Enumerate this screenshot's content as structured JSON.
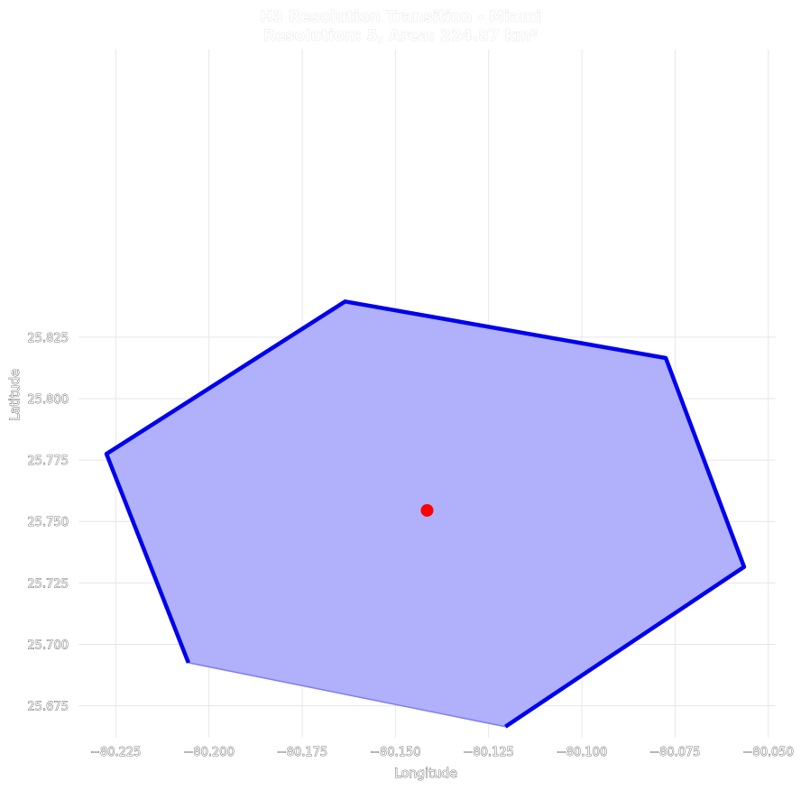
{
  "chart_data": {
    "type": "polygon",
    "title": "H3 Resolution Transition - Miami",
    "subtitle": "Resolution: 5, Area: 224.87 km²",
    "xlabel": "Longitude",
    "ylabel": "Latitude",
    "xlim": [
      -80.235,
      -80.048
    ],
    "ylim": [
      25.662,
      25.942
    ],
    "x_ticks": [
      -80.225,
      -80.2,
      -80.175,
      -80.15,
      -80.125,
      -80.1,
      -80.075,
      -80.05
    ],
    "y_ticks": [
      25.675,
      25.7,
      25.725,
      25.75,
      25.775,
      25.8,
      25.825
    ],
    "x_tick_labels": [
      "−80.225",
      "−80.200",
      "−80.175",
      "−80.150",
      "−80.125",
      "−80.100",
      "−80.075",
      "−80.050"
    ],
    "y_tick_labels": [
      "25.675",
      "25.700",
      "25.725",
      "25.750",
      "25.775",
      "25.800",
      "25.825"
    ],
    "grid": true,
    "hexagon": {
      "vertices": [
        {
          "lon": -80.1635,
          "lat": 25.8395
        },
        {
          "lon": -80.0775,
          "lat": 25.8165
        },
        {
          "lon": -80.0565,
          "lat": 25.7315
        },
        {
          "lon": -80.1205,
          "lat": 25.6665
        },
        {
          "lon": -80.2055,
          "lat": 25.6925
        },
        {
          "lon": -80.2275,
          "lat": 25.7775
        }
      ],
      "fill_color": "#b0b0fb",
      "edge_color": "#0000ee",
      "thin_edge_color": "#7d7df5"
    },
    "center_point": {
      "lon": -80.1415,
      "lat": 25.7545,
      "color": "#ff0000"
    }
  }
}
